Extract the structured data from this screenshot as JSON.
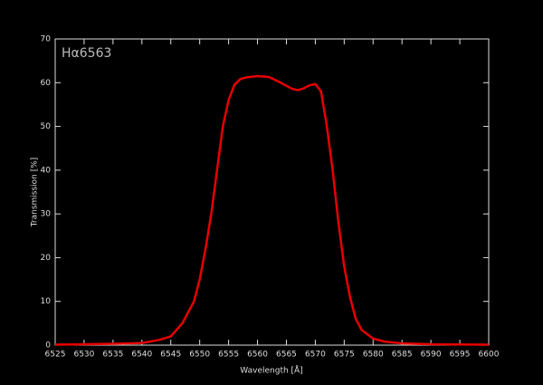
{
  "chart_data": {
    "type": "line",
    "title": "Hα6563",
    "xlabel": "Wavelength [Å]",
    "ylabel": "Transmission [%]",
    "x": [
      6525,
      6530,
      6535,
      6540,
      6543,
      6545,
      6547,
      6549,
      6550,
      6551,
      6552,
      6553,
      6554,
      6555,
      6556,
      6557,
      6558,
      6560,
      6562,
      6564,
      6566,
      6567,
      6568,
      6569,
      6570,
      6571,
      6572,
      6573,
      6574,
      6575,
      6576,
      6577,
      6578,
      6580,
      6582,
      6585,
      6590,
      6595,
      6600
    ],
    "series": [
      {
        "name": "Hα6563",
        "color": "#e80000",
        "values": [
          0.1,
          0.2,
          0.3,
          0.5,
          1.2,
          2,
          5,
          10,
          15,
          22,
          30,
          40,
          50,
          56,
          59.5,
          60.8,
          61.2,
          61.5,
          61.3,
          60,
          58.6,
          58.3,
          58.7,
          59.4,
          59.7,
          58,
          50,
          40,
          28,
          18,
          11,
          6,
          3.5,
          1.5,
          0.8,
          0.4,
          0.2,
          0.15,
          0.1
        ]
      }
    ],
    "xlim": [
      6525,
      6600
    ],
    "ylim": [
      0,
      70
    ],
    "xticks": [
      6525,
      6530,
      6535,
      6540,
      6545,
      6550,
      6555,
      6560,
      6565,
      6570,
      6575,
      6580,
      6585,
      6590,
      6595,
      6600
    ],
    "yticks": [
      0,
      10,
      20,
      30,
      40,
      50,
      60,
      70
    ]
  }
}
